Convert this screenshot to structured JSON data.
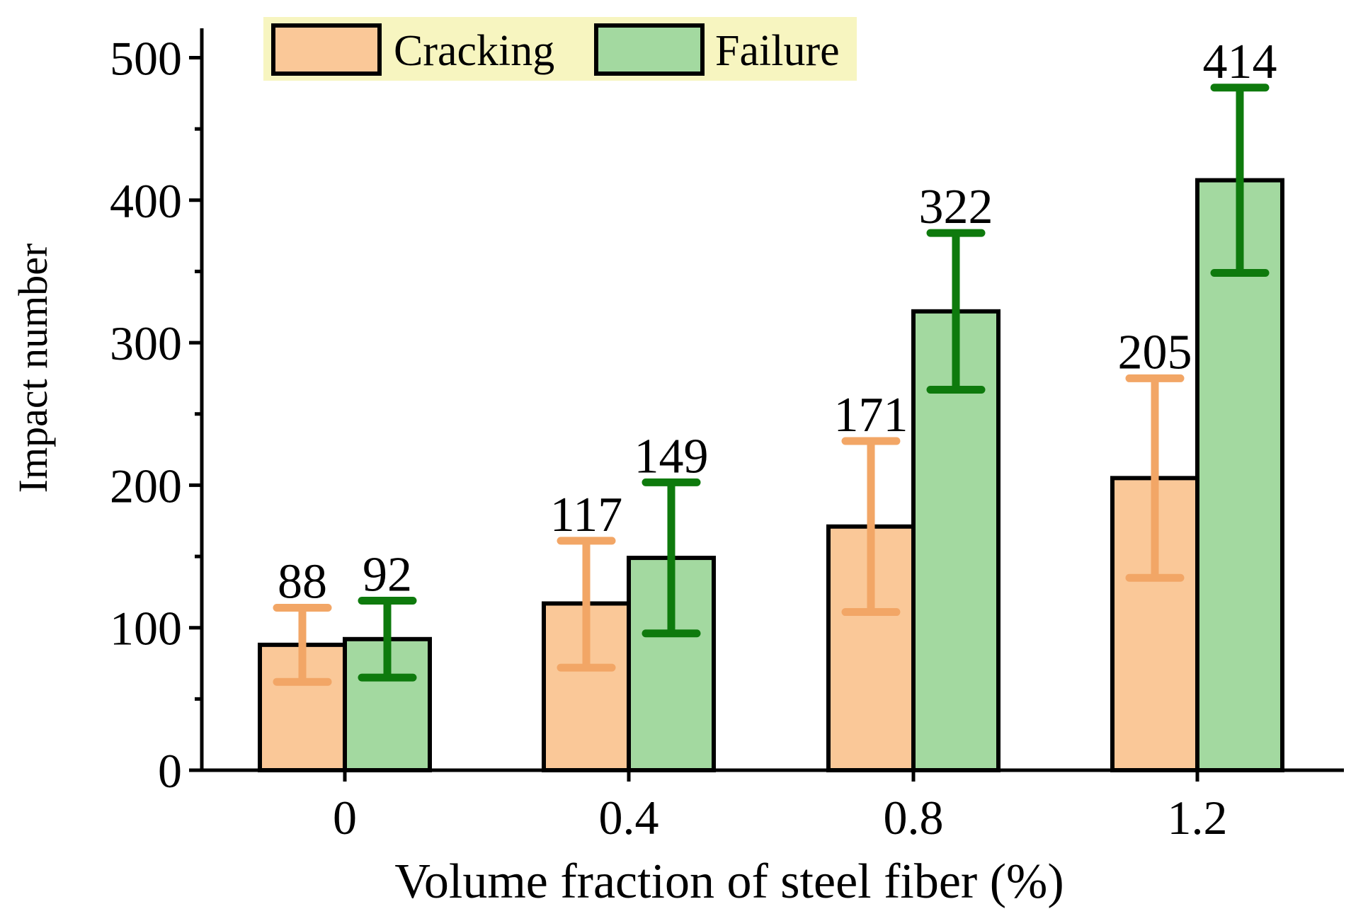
{
  "chart_data": {
    "type": "bar",
    "title": "",
    "xlabel": "Volume fraction of steel fiber (%)",
    "ylabel": "Impact number",
    "categories": [
      "0",
      "0.4",
      "0.8",
      "1.2"
    ],
    "ylim": [
      0,
      520
    ],
    "yticks": [
      0,
      100,
      200,
      300,
      400,
      500
    ],
    "yticks_labels": [
      "0",
      "100",
      "200",
      "300",
      "400",
      "500"
    ],
    "legend_position": "top-left",
    "series": [
      {
        "name": "Cracking",
        "values": [
          88,
          117,
          171,
          205
        ],
        "value_labels": [
          "88",
          "117",
          "171",
          "205"
        ],
        "error_low": [
          62,
          72,
          111,
          135
        ],
        "error_high": [
          114,
          161,
          231,
          275
        ],
        "color": "#FAC898",
        "error_color": "#F2A666"
      },
      {
        "name": "Failure",
        "values": [
          92,
          149,
          322,
          414
        ],
        "value_labels": [
          "92",
          "149",
          "322",
          "414"
        ],
        "error_low": [
          65,
          96,
          267,
          349
        ],
        "error_high": [
          119,
          202,
          377,
          479
        ],
        "color": "#A3D9A0",
        "error_color": "#0E7A0D"
      }
    ],
    "legend_background": "#F7F5C0"
  }
}
